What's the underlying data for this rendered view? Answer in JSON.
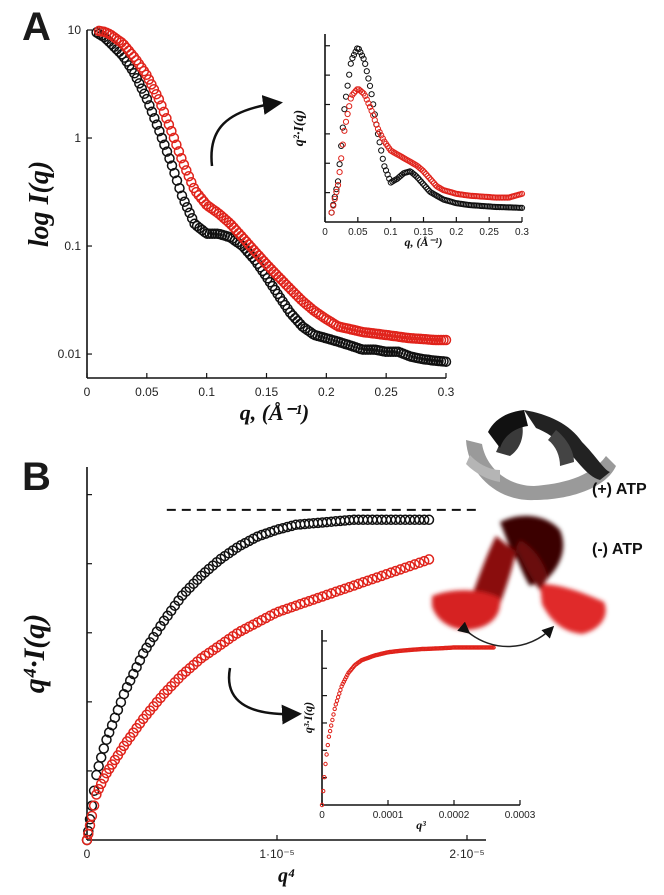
{
  "panel_a_label": "A",
  "panel_b_label": "B",
  "colors": {
    "black_series": "#111111",
    "red_series": "#e0231b",
    "protein_light": "#9a9a9a",
    "protein_dark": "#2a2a2a"
  },
  "chart_data": [
    {
      "id": "A-main",
      "type": "scatter",
      "ylabel": "log I(q)",
      "xlabel": "q, (Å⁻¹)",
      "y_scale": "log",
      "xlim": [
        0,
        0.3
      ],
      "ylim": [
        0.006,
        10
      ],
      "x_ticks": [
        "0",
        "0.05",
        "0.1",
        "0.15",
        "0.2",
        "0.25",
        "0.3"
      ],
      "x_tick_values": [
        0,
        0.05,
        0.1,
        0.15,
        0.2,
        0.25,
        0.3
      ],
      "y_ticks": [
        "0.01",
        "0.1",
        "1",
        "10"
      ],
      "y_tick_values": [
        0.01,
        0.1,
        1,
        10
      ],
      "series": [
        {
          "color": "black",
          "x": [
            0.008,
            0.015,
            0.02,
            0.03,
            0.04,
            0.05,
            0.06,
            0.07,
            0.08,
            0.09,
            0.1,
            0.11,
            0.12,
            0.13,
            0.14,
            0.15,
            0.16,
            0.17,
            0.18,
            0.19,
            0.2,
            0.21,
            0.22,
            0.23,
            0.24,
            0.25,
            0.26,
            0.27,
            0.28,
            0.29,
            0.3
          ],
          "y": [
            9.5,
            8.5,
            7.5,
            5.8,
            3.9,
            2.3,
            1.2,
            0.6,
            0.28,
            0.16,
            0.13,
            0.13,
            0.12,
            0.1,
            0.075,
            0.052,
            0.035,
            0.024,
            0.018,
            0.015,
            0.014,
            0.013,
            0.012,
            0.011,
            0.011,
            0.0105,
            0.0105,
            0.0095,
            0.009,
            0.0087,
            0.0085
          ]
        },
        {
          "color": "red",
          "x": [
            0.01,
            0.015,
            0.02,
            0.03,
            0.04,
            0.05,
            0.06,
            0.07,
            0.08,
            0.09,
            0.1,
            0.11,
            0.12,
            0.13,
            0.14,
            0.15,
            0.16,
            0.17,
            0.18,
            0.19,
            0.2,
            0.21,
            0.22,
            0.23,
            0.24,
            0.25,
            0.26,
            0.27,
            0.28,
            0.29,
            0.3
          ],
          "y": [
            9.8,
            9.6,
            9,
            7.5,
            5.5,
            3.8,
            2.3,
            1.2,
            0.6,
            0.33,
            0.24,
            0.2,
            0.16,
            0.12,
            0.09,
            0.068,
            0.052,
            0.04,
            0.031,
            0.025,
            0.021,
            0.018,
            0.017,
            0.016,
            0.0155,
            0.015,
            0.0145,
            0.014,
            0.0138,
            0.0135,
            0.0135
          ]
        }
      ]
    },
    {
      "id": "A-inset",
      "type": "scatter",
      "ylabel": "q²·I(q)",
      "xlabel": "q, (Å⁻¹)",
      "xlim": [
        0,
        0.3
      ],
      "ylim": [
        0,
        1
      ],
      "x_ticks": [
        "0",
        "0.05",
        "0.1",
        "0.15",
        "0.2",
        "0.25",
        "0.3"
      ],
      "x_tick_values": [
        0,
        0.05,
        0.1,
        0.15,
        0.2,
        0.25,
        0.3
      ],
      "series": [
        {
          "color": "black",
          "x": [
            0.01,
            0.02,
            0.03,
            0.04,
            0.05,
            0.06,
            0.07,
            0.08,
            0.09,
            0.1,
            0.11,
            0.12,
            0.13,
            0.14,
            0.15,
            0.16,
            0.17,
            0.18,
            0.2,
            0.22,
            0.24,
            0.26,
            0.28,
            0.3
          ],
          "y": [
            0.05,
            0.22,
            0.62,
            0.86,
            0.93,
            0.86,
            0.7,
            0.48,
            0.3,
            0.21,
            0.23,
            0.26,
            0.27,
            0.24,
            0.2,
            0.16,
            0.14,
            0.12,
            0.1,
            0.09,
            0.085,
            0.08,
            0.078,
            0.075
          ]
        },
        {
          "color": "red",
          "x": [
            0.01,
            0.02,
            0.03,
            0.04,
            0.05,
            0.06,
            0.07,
            0.08,
            0.09,
            0.1,
            0.11,
            0.12,
            0.13,
            0.14,
            0.15,
            0.16,
            0.17,
            0.18,
            0.2,
            0.22,
            0.24,
            0.26,
            0.28,
            0.3
          ],
          "y": [
            0.05,
            0.2,
            0.5,
            0.67,
            0.71,
            0.68,
            0.6,
            0.5,
            0.43,
            0.38,
            0.36,
            0.34,
            0.32,
            0.3,
            0.27,
            0.23,
            0.19,
            0.17,
            0.15,
            0.14,
            0.135,
            0.13,
            0.13,
            0.15
          ]
        }
      ]
    },
    {
      "id": "B-main",
      "type": "scatter",
      "ylabel": "q⁴·I(q)",
      "xlabel": "q⁴",
      "xlim": [
        0,
        2.1e-05
      ],
      "ylim": [
        0,
        1.13
      ],
      "x_ticks": [
        "0",
        "1·10⁻⁵",
        "2·10⁻⁵"
      ],
      "x_tick_values": [
        0,
        1e-05,
        2e-05
      ],
      "plateau_line_y": 1.0,
      "series": [
        {
          "color": "black",
          "x": [
            0,
            5e-07,
            1e-06,
            2e-06,
            3e-06,
            4e-06,
            5e-06,
            6e-06,
            7e-06,
            8e-06,
            9e-06,
            1e-05,
            1.1e-05,
            1.2e-05,
            1.3e-05,
            1.4e-05,
            1.5e-05,
            1.6e-05,
            1.7e-05,
            1.8e-05
          ],
          "y": [
            0,
            0.2,
            0.3,
            0.45,
            0.57,
            0.66,
            0.74,
            0.8,
            0.85,
            0.89,
            0.92,
            0.94,
            0.955,
            0.96,
            0.965,
            0.97,
            0.97,
            0.97,
            0.97,
            0.97
          ]
        },
        {
          "color": "red",
          "x": [
            0,
            5e-07,
            1e-06,
            2e-06,
            3e-06,
            4e-06,
            5e-06,
            6e-06,
            7e-06,
            8e-06,
            9e-06,
            1e-05,
            1.1e-05,
            1.2e-05,
            1.3e-05,
            1.4e-05,
            1.5e-05,
            1.6e-05,
            1.7e-05,
            1.8e-05
          ],
          "y": [
            0,
            0.14,
            0.2,
            0.29,
            0.37,
            0.44,
            0.5,
            0.55,
            0.59,
            0.63,
            0.66,
            0.69,
            0.71,
            0.73,
            0.75,
            0.77,
            0.79,
            0.81,
            0.83,
            0.85
          ]
        }
      ]
    },
    {
      "id": "B-inset",
      "type": "scatter",
      "ylabel": "q³·I(q)",
      "xlabel": "q³",
      "xlim": [
        0,
        0.0003
      ],
      "ylim": [
        0,
        1.1
      ],
      "x_ticks": [
        "0",
        "0.0001",
        "0.0002",
        "0.0003"
      ],
      "x_tick_values": [
        0,
        0.0001,
        0.0002,
        0.0003
      ],
      "series": [
        {
          "color": "red",
          "x": [
            0,
            5e-06,
            1e-05,
            2e-05,
            3e-05,
            4e-05,
            5e-05,
            6e-05,
            8e-05,
            0.0001,
            0.00012,
            0.00015,
            0.00018,
            0.0002,
            0.00023,
            0.00026
          ],
          "y": [
            0,
            0.25,
            0.42,
            0.62,
            0.75,
            0.83,
            0.88,
            0.91,
            0.94,
            0.96,
            0.97,
            0.98,
            0.985,
            0.99,
            0.99,
            0.99
          ]
        }
      ]
    }
  ],
  "legend": {
    "plus_atp": "(+) ATP",
    "minus_atp": "(-) ATP"
  }
}
